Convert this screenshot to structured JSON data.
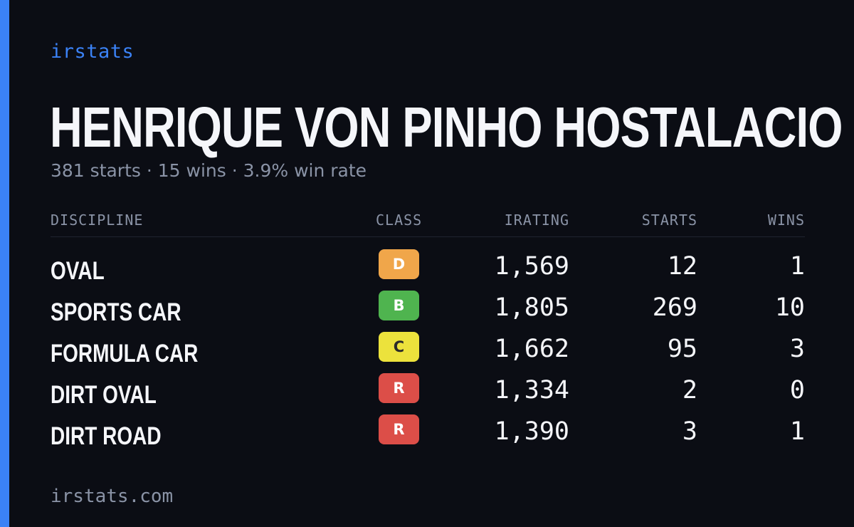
{
  "brand": "irstats",
  "driver": {
    "name": "HENRIQUE VON PINHO HOSTALACIO",
    "summary": "381 starts · 15 wins · 3.9% win rate"
  },
  "table": {
    "headers": {
      "discipline": "DISCIPLINE",
      "class": "CLASS",
      "irating": "IRATING",
      "starts": "STARTS",
      "wins": "WINS"
    },
    "rows": [
      {
        "discipline": "OVAL",
        "class": "D",
        "class_color": "#f0a64a",
        "class_text_color": "#ffffff",
        "irating": "1,569",
        "starts": "12",
        "wins": "1"
      },
      {
        "discipline": "SPORTS CAR",
        "class": "B",
        "class_color": "#4fb44f",
        "class_text_color": "#ffffff",
        "irating": "1,805",
        "starts": "269",
        "wins": "10"
      },
      {
        "discipline": "FORMULA CAR",
        "class": "C",
        "class_color": "#ece23c",
        "class_text_color": "#2a2a2a",
        "irating": "1,662",
        "starts": "95",
        "wins": "3"
      },
      {
        "discipline": "DIRT OVAL",
        "class": "R",
        "class_color": "#dc4e48",
        "class_text_color": "#ffffff",
        "irating": "1,334",
        "starts": "2",
        "wins": "0"
      },
      {
        "discipline": "DIRT ROAD",
        "class": "R",
        "class_color": "#dc4e48",
        "class_text_color": "#ffffff",
        "irating": "1,390",
        "starts": "3",
        "wins": "1"
      }
    ]
  },
  "footer": {
    "url": "irstats.com"
  },
  "colors": {
    "background": "#0b0d14",
    "accent": "#3b82f6",
    "text_primary": "#f5f6fa",
    "text_muted": "#8a93a6"
  }
}
